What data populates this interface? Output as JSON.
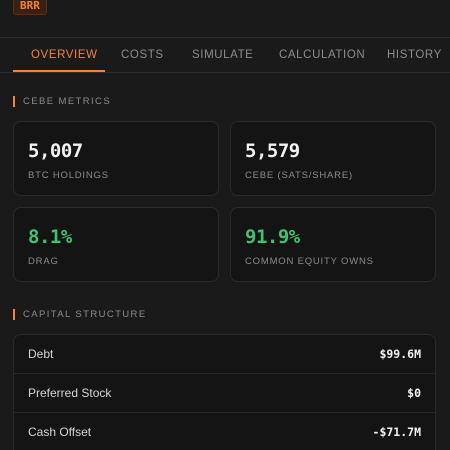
{
  "ticker": "BRR",
  "tabs": [
    {
      "label": "OVERVIEW",
      "active": true
    },
    {
      "label": "COSTS",
      "active": false
    },
    {
      "label": "SIMULATE",
      "active": false
    },
    {
      "label": "CALCULATION",
      "active": false
    },
    {
      "label": "HISTORY",
      "active": false
    }
  ],
  "sections": {
    "metrics_title": "CEBE METRICS",
    "capital_title": "CAPITAL STRUCTURE"
  },
  "metrics": [
    {
      "value": "5,007",
      "label": "BTC HOLDINGS",
      "color": "white"
    },
    {
      "value": "5,579",
      "label": "CEBE (SATS/SHARE)",
      "color": "white"
    },
    {
      "value": "8.1%",
      "label": "DRAG",
      "color": "green"
    },
    {
      "value": "91.9%",
      "label": "COMMON EQUITY OWNS",
      "color": "green"
    }
  ],
  "capital_structure": [
    {
      "label": "Debt",
      "value": "$99.6M"
    },
    {
      "label": "Preferred Stock",
      "value": "$0"
    },
    {
      "label": "Cash Offset",
      "value": "-$71.7M"
    }
  ],
  "colors": {
    "accent": "#f4833a",
    "positive": "#3ec46d",
    "background": "#1a1a1a",
    "card": "#141414"
  }
}
